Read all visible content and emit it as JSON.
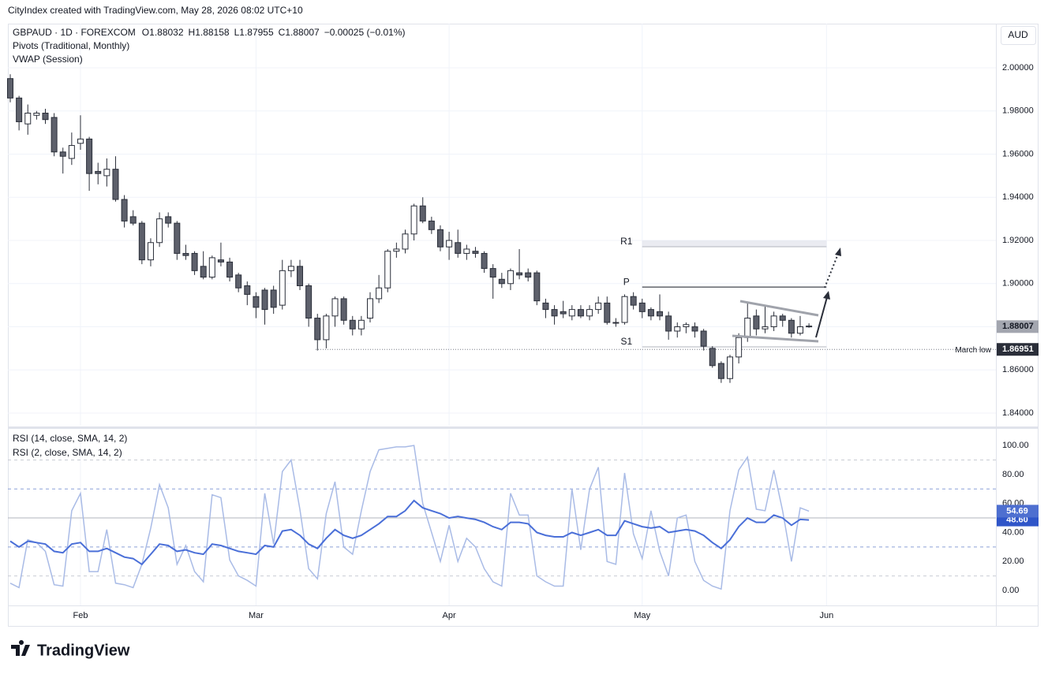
{
  "page": {
    "watermark": "CityIndex created with TradingView.com, May 28, 2026 08:02 UTC+10",
    "logo": "TradingView"
  },
  "chart_data": [
    {
      "type": "candlestick",
      "symbol": "GBPAUD · 1D · FOREXCOM",
      "ohlc_labels": [
        "O",
        "H",
        "L",
        "C"
      ],
      "change": "−0.00025 (−0.01%)",
      "indicators": [
        "Pivots (Traditional, Monthly)",
        "VWAP (Session)"
      ],
      "currency": "AUD",
      "xlim": [
        -0.27,
        112.3
      ],
      "xticks": [
        {
          "value": 8,
          "label": "Feb"
        },
        {
          "value": 28,
          "label": "Mar"
        },
        {
          "value": 50,
          "label": "Apr"
        },
        {
          "value": 72,
          "label": "May"
        },
        {
          "value": 93,
          "label": "Jun"
        }
      ],
      "ylim": [
        1.83416,
        2.02046
      ],
      "yticks": [
        {
          "value": 1.84,
          "label": "1.84000"
        },
        {
          "value": 1.86,
          "label": "1.86000"
        },
        {
          "value": 1.88,
          "label": "1.88000"
        },
        {
          "value": 1.9,
          "label": "1.90000"
        },
        {
          "value": 1.92,
          "label": "1.92000"
        },
        {
          "value": 1.94,
          "label": "1.94000"
        },
        {
          "value": 1.96,
          "label": "1.96000"
        },
        {
          "value": 1.98,
          "label": "1.98000"
        },
        {
          "value": 2.0,
          "label": "2.00000"
        }
      ],
      "grid": true,
      "series": [
        {
          "name": "GBPAUD",
          "up_color": "#ffffff",
          "down_color": "#5d606b",
          "wick_color": "#2a2e39",
          "open": [
            1.995,
            1.986,
            1.974,
            1.978,
            1.979,
            1.977,
            1.961,
            1.958,
            1.965,
            1.967,
            1.952,
            1.95,
            1.953,
            1.939,
            1.931,
            1.928,
            1.911,
            1.919,
            1.931,
            1.928,
            1.914,
            1.914,
            1.908,
            1.903,
            1.911,
            1.91,
            1.904,
            1.899,
            1.894,
            1.897,
            1.897,
            1.89,
            1.906,
            1.908,
            1.899,
            1.884,
            1.874,
            1.885,
            1.893,
            1.883,
            1.879,
            1.884,
            1.893,
            1.898,
            1.915,
            1.916,
            1.923,
            1.936,
            1.929,
            1.925,
            1.917,
            1.919,
            1.914,
            1.915,
            1.914,
            1.907,
            1.902,
            1.9,
            1.905,
            1.905,
            1.905,
            1.891,
            1.888,
            1.887,
            1.885,
            1.888,
            1.885,
            1.888,
            1.891,
            1.882,
            1.882,
            1.894,
            1.891,
            1.888,
            1.887,
            1.885,
            1.878,
            1.88,
            1.88,
            1.878,
            1.87,
            1.863,
            1.856,
            1.866,
            1.875,
            1.885,
            1.879,
            1.88,
            1.885,
            1.883,
            1.877,
            1.88032
          ],
          "high": [
            1.997,
            1.987,
            1.983,
            1.98,
            1.981,
            1.979,
            1.963,
            1.97,
            1.978,
            1.968,
            1.956,
            1.958,
            1.959,
            1.941,
            1.934,
            1.929,
            1.921,
            1.933,
            1.933,
            1.929,
            1.918,
            1.915,
            1.915,
            1.913,
            1.919,
            1.912,
            1.905,
            1.901,
            1.896,
            1.898,
            1.899,
            1.911,
            1.911,
            1.911,
            1.9,
            1.886,
            1.886,
            1.894,
            1.894,
            1.885,
            1.885,
            1.896,
            1.904,
            1.916,
            1.919,
            1.925,
            1.937,
            1.94,
            1.931,
            1.927,
            1.924,
            1.925,
            1.918,
            1.917,
            1.915,
            1.909,
            1.905,
            1.907,
            1.916,
            1.907,
            1.906,
            1.893,
            1.89,
            1.892,
            1.89,
            1.89,
            1.89,
            1.894,
            1.894,
            1.884,
            1.895,
            1.896,
            1.893,
            1.889,
            1.895,
            1.887,
            1.882,
            1.882,
            1.882,
            1.879,
            1.871,
            1.864,
            1.867,
            1.877,
            1.891,
            1.888,
            1.89,
            1.887,
            1.886,
            1.884,
            1.885,
            1.88158
          ],
          "low": [
            1.984,
            1.971,
            1.969,
            1.976,
            1.974,
            1.959,
            1.951,
            1.955,
            1.962,
            1.943,
            1.946,
            1.945,
            1.938,
            1.926,
            1.927,
            1.909,
            1.908,
            1.917,
            1.926,
            1.911,
            1.911,
            1.904,
            1.902,
            1.902,
            1.908,
            1.901,
            1.896,
            1.89,
            1.884,
            1.881,
            1.886,
            1.888,
            1.903,
            1.897,
            1.88,
            1.869,
            1.87,
            1.88,
            1.881,
            1.876,
            1.876,
            1.882,
            1.891,
            1.896,
            1.912,
            1.914,
            1.92,
            1.928,
            1.923,
            1.915,
            1.911,
            1.912,
            1.911,
            1.912,
            1.905,
            1.893,
            1.898,
            1.897,
            1.902,
            1.901,
            1.89,
            1.884,
            1.881,
            1.884,
            1.883,
            1.884,
            1.883,
            1.886,
            1.881,
            1.88,
            1.881,
            1.888,
            1.884,
            1.883,
            1.883,
            1.874,
            1.875,
            1.877,
            1.875,
            1.869,
            1.861,
            1.854,
            1.854,
            1.863,
            1.873,
            1.876,
            1.877,
            1.878,
            1.88,
            1.875,
            1.876,
            1.87955
          ],
          "close": [
            1.986,
            1.975,
            1.979,
            1.979,
            1.976,
            1.961,
            1.959,
            1.964,
            1.967,
            1.951,
            1.951,
            1.953,
            1.939,
            1.929,
            1.928,
            1.911,
            1.919,
            1.93,
            1.928,
            1.914,
            1.913,
            1.906,
            1.903,
            1.912,
            1.91,
            1.903,
            1.898,
            1.895,
            1.889,
            1.888,
            1.889,
            1.906,
            1.908,
            1.899,
            1.884,
            1.874,
            1.885,
            1.893,
            1.883,
            1.879,
            1.883,
            1.893,
            1.898,
            1.915,
            1.916,
            1.923,
            1.936,
            1.929,
            1.925,
            1.917,
            1.92,
            1.914,
            1.916,
            1.914,
            1.907,
            1.903,
            1.9,
            1.906,
            1.904,
            1.903,
            1.892,
            1.888,
            1.885,
            1.886,
            1.888,
            1.885,
            1.888,
            1.891,
            1.882,
            1.882,
            1.894,
            1.89,
            1.887,
            1.885,
            1.885,
            1.878,
            1.88,
            1.881,
            1.878,
            1.871,
            1.862,
            1.856,
            1.866,
            1.875,
            1.884,
            1.879,
            1.88,
            1.885,
            1.883,
            1.877,
            1.88,
            1.88007
          ]
        }
      ],
      "pivots": [
        {
          "label": "R1",
          "value": 1.9171,
          "color": "#b2b5be"
        },
        {
          "label": "P",
          "value": 1.8984,
          "color": "#131722"
        },
        {
          "label": "S1",
          "value": 1.8707,
          "color": "#b2b5be"
        }
      ],
      "reference_lines": [
        {
          "label": "March low",
          "value": 1.86951
        }
      ]
    },
    {
      "type": "line",
      "ylim": [
        -10.3,
        110.9
      ],
      "yticks": [
        {
          "value": 0,
          "label": "0.00"
        },
        {
          "value": 20,
          "label": "20.00"
        },
        {
          "value": 40,
          "label": "40.00"
        },
        {
          "value": 60,
          "label": "60.00"
        },
        {
          "value": 80,
          "label": "80.00"
        },
        {
          "value": 100,
          "label": "100.00"
        }
      ],
      "levels": [
        10,
        30,
        50,
        70,
        90
      ],
      "series": [
        {
          "name": "RSI (14, close, SMA, 14, 2)",
          "color": "#4a6fd8",
          "last_label": "48.60",
          "values": [
            34,
            30,
            34,
            33,
            32,
            27,
            26,
            32,
            33,
            27,
            27,
            29,
            26,
            23,
            22,
            18,
            25,
            32,
            31,
            27,
            28,
            26,
            25,
            32,
            31,
            29,
            27,
            26,
            25,
            31,
            30,
            41,
            42,
            38,
            32,
            29,
            36,
            42,
            38,
            36,
            38,
            42,
            46,
            51,
            51,
            55,
            62,
            57,
            55,
            53,
            50,
            51,
            50,
            49,
            47,
            44,
            42,
            47,
            47,
            46,
            40,
            38,
            37,
            37,
            40,
            38,
            40,
            42,
            38,
            38,
            48,
            46,
            44,
            43,
            44,
            40,
            41,
            42,
            41,
            38,
            33,
            29,
            35,
            44,
            50,
            47,
            47,
            52,
            50,
            45,
            49,
            48.6
          ]
        },
        {
          "name": "RSI (2, close, SMA, 14, 2)",
          "color": "#a9bbe6",
          "last_label": "54.69",
          "values": [
            5,
            2,
            35,
            33,
            27,
            4,
            3,
            55,
            67,
            13,
            13,
            42,
            5,
            4,
            2,
            18,
            43,
            73,
            57,
            18,
            31,
            13,
            6,
            66,
            64,
            21,
            10,
            7,
            3,
            67,
            32,
            82,
            90,
            56,
            15,
            8,
            53,
            75,
            30,
            25,
            55,
            82,
            97,
            98,
            99,
            99,
            100,
            60,
            40,
            20,
            45,
            20,
            36,
            30,
            15,
            6,
            3,
            67,
            52,
            52,
            10,
            6,
            3,
            3,
            70,
            28,
            70,
            85,
            20,
            18,
            81,
            39,
            22,
            55,
            27,
            10,
            50,
            52,
            20,
            7,
            3,
            1,
            55,
            83,
            92,
            56,
            55,
            83,
            55,
            20,
            57,
            54.69
          ]
        }
      ]
    }
  ]
}
